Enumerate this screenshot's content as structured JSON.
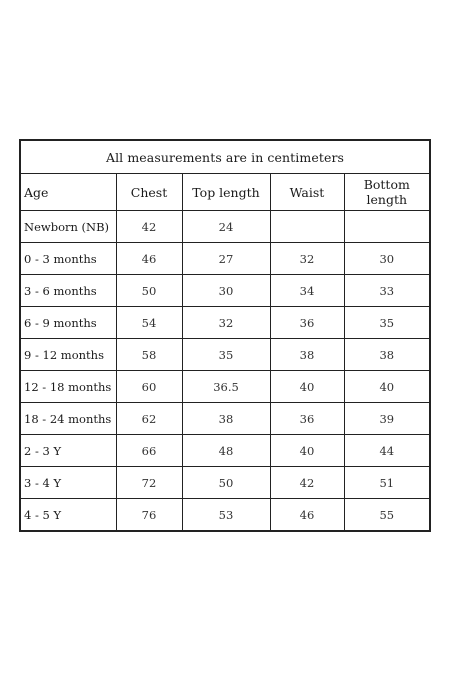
{
  "caption": "All measurements are in centimeters",
  "headers": [
    "Age",
    "Chest",
    "Top length",
    "Waist",
    "Bottom length"
  ],
  "rows": [
    {
      "age": "Newborn (NB)",
      "chest": "42",
      "top_length": "24",
      "waist": "",
      "bottom_length": ""
    },
    {
      "age": "0 - 3 months",
      "chest": "46",
      "top_length": "27",
      "waist": "32",
      "bottom_length": "30"
    },
    {
      "age": "3 - 6 months",
      "chest": "50",
      "top_length": "30",
      "waist": "34",
      "bottom_length": "33"
    },
    {
      "age": "6 - 9 months",
      "chest": "54",
      "top_length": "32",
      "waist": "36",
      "bottom_length": "35"
    },
    {
      "age": "9 - 12 months",
      "chest": "58",
      "top_length": "35",
      "waist": "38",
      "bottom_length": "38"
    },
    {
      "age": "12 - 18 months",
      "chest": "60",
      "top_length": "36.5",
      "waist": "40",
      "bottom_length": "40"
    },
    {
      "age": "18 - 24 months",
      "chest": "62",
      "top_length": "38",
      "waist": "36",
      "bottom_length": "39"
    },
    {
      "age": "2 - 3 Y",
      "chest": "66",
      "top_length": "48",
      "waist": "40",
      "bottom_length": "44"
    },
    {
      "age": "3 - 4 Y",
      "chest": "72",
      "top_length": "50",
      "waist": "42",
      "bottom_length": "51"
    },
    {
      "age": "4 - 5 Y",
      "chest": "76",
      "top_length": "53",
      "waist": "46",
      "bottom_length": "55"
    }
  ]
}
